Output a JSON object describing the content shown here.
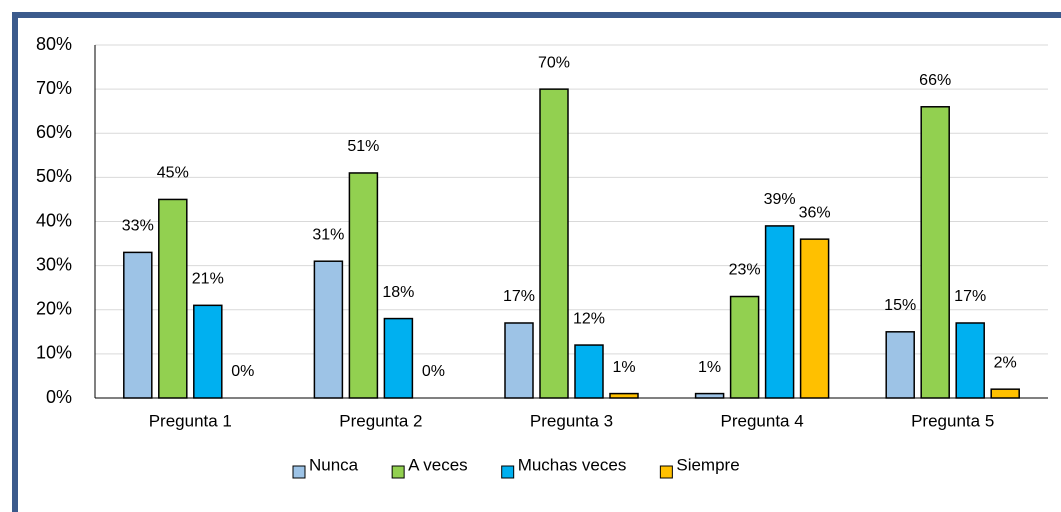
{
  "chart_data": {
    "type": "bar",
    "categories": [
      "Pregunta 1",
      "Pregunta 2",
      "Pregunta 3",
      "Pregunta 4",
      "Pregunta 5"
    ],
    "series": [
      {
        "name": "Nunca",
        "color": "#9dc3e6",
        "values": [
          33,
          31,
          17,
          1,
          15
        ],
        "value_labels": [
          "33%",
          "31%",
          "17%",
          "1%",
          "15%"
        ]
      },
      {
        "name": "A veces",
        "color": "#92d050",
        "values": [
          45,
          51,
          70,
          23,
          66
        ],
        "value_labels": [
          "45%",
          "51%",
          "70%",
          "23%",
          "66%"
        ]
      },
      {
        "name": "Muchas veces",
        "color": "#00b0f0",
        "values": [
          21,
          18,
          12,
          39,
          17
        ],
        "value_labels": [
          "21%",
          "18%",
          "12%",
          "39%",
          "17%"
        ]
      },
      {
        "name": "Siempre",
        "color": "#ffc000",
        "values": [
          0,
          0,
          1,
          36,
          2
        ],
        "value_labels": [
          "0%",
          "0%",
          "1%",
          "36%",
          "2%"
        ]
      }
    ],
    "ylim": [
      0,
      80
    ],
    "yticks": [
      {
        "value": 0,
        "label": "0%"
      },
      {
        "value": 10,
        "label": "10%"
      },
      {
        "value": 20,
        "label": "20%"
      },
      {
        "value": 30,
        "label": "30%"
      },
      {
        "value": 40,
        "label": "40%"
      },
      {
        "value": 50,
        "label": "50%"
      },
      {
        "value": 60,
        "label": "60%"
      },
      {
        "value": 70,
        "label": "70%"
      },
      {
        "value": 80,
        "label": "80%"
      }
    ],
    "grid": true,
    "legend": "bottom"
  }
}
